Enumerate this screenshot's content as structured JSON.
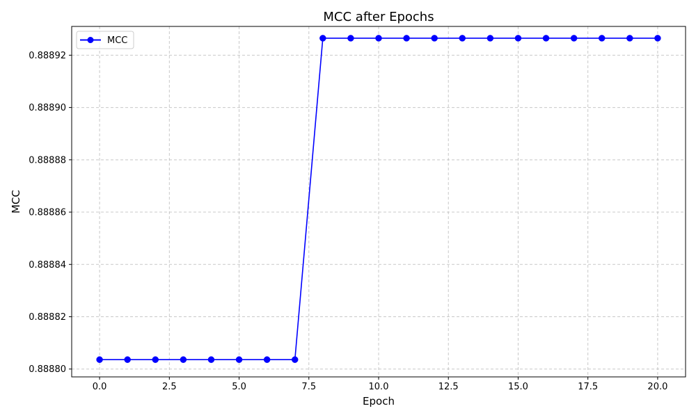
{
  "chart_data": {
    "type": "line",
    "title": "MCC after Epochs",
    "xlabel": "Epoch",
    "ylabel": "MCC",
    "xlim": [
      -1.0,
      21.0
    ],
    "ylim": [
      0.888797,
      0.888931
    ],
    "x_ticks": [
      0.0,
      2.5,
      5.0,
      7.5,
      10.0,
      12.5,
      15.0,
      17.5,
      20.0
    ],
    "x_tick_labels": [
      "0.0",
      "2.5",
      "5.0",
      "7.5",
      "10.0",
      "12.5",
      "15.0",
      "17.5",
      "20.0"
    ],
    "y_ticks": [
      0.8888,
      0.88882,
      0.88884,
      0.88886,
      0.88888,
      0.8889,
      0.88892
    ],
    "y_tick_labels": [
      "0.88880",
      "0.88882",
      "0.88884",
      "0.88886",
      "0.88888",
      "0.88890",
      "0.88892"
    ],
    "grid": true,
    "legend_position": "top-left",
    "series": [
      {
        "name": "MCC",
        "color": "#0000ff",
        "marker": "circle",
        "x": [
          0,
          1,
          2,
          3,
          4,
          5,
          6,
          7,
          8,
          9,
          10,
          11,
          12,
          13,
          14,
          15,
          16,
          17,
          18,
          19,
          20
        ],
        "values": [
          0.8888036,
          0.8888036,
          0.8888036,
          0.8888036,
          0.8888036,
          0.8888036,
          0.8888036,
          0.8888036,
          0.8889265,
          0.8889265,
          0.8889265,
          0.8889265,
          0.8889265,
          0.8889265,
          0.8889265,
          0.8889265,
          0.8889265,
          0.8889265,
          0.8889265,
          0.8889265,
          0.8889265
        ]
      }
    ]
  }
}
